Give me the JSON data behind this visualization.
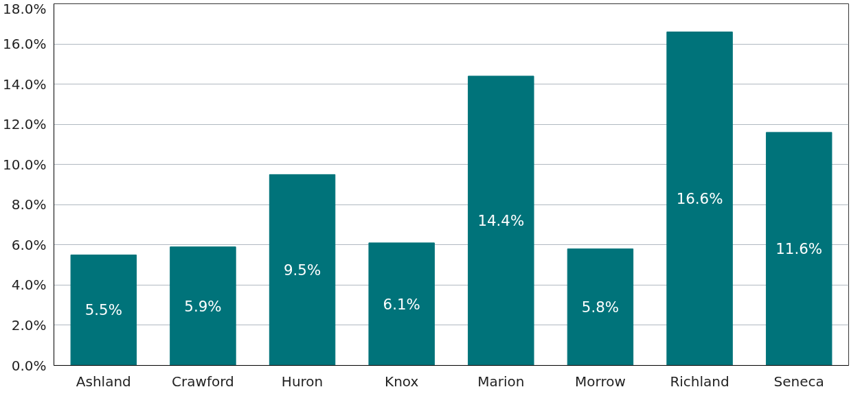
{
  "chart_data": {
    "type": "bar",
    "categories": [
      "Ashland",
      "Crawford",
      "Huron",
      "Knox",
      "Marion",
      "Morrow",
      "Richland",
      "Seneca"
    ],
    "values": [
      5.5,
      5.9,
      9.5,
      6.1,
      14.4,
      5.8,
      16.6,
      11.6
    ],
    "value_labels": [
      "5.5%",
      "5.9%",
      "9.5%",
      "6.1%",
      "14.4%",
      "5.8%",
      "16.6%",
      "11.6%"
    ],
    "color": "#00737a",
    "ylim": [
      0,
      18
    ],
    "yticks": [
      {
        "value": 0,
        "label": "0.0%"
      },
      {
        "value": 2,
        "label": "2.0%"
      },
      {
        "value": 4,
        "label": "4.0%"
      },
      {
        "value": 6,
        "label": "6.0%"
      },
      {
        "value": 8,
        "label": "8.0%"
      },
      {
        "value": 10,
        "label": "10.0%"
      },
      {
        "value": 12,
        "label": "12.0%"
      },
      {
        "value": 14,
        "label": "14.0%"
      },
      {
        "value": 16,
        "label": "16.0%"
      },
      {
        "value": 18,
        "label": "18.0%"
      }
    ],
    "grid": "y"
  }
}
